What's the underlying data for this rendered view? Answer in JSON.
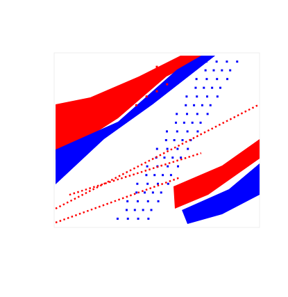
{
  "chart_data": {
    "type": "scatter",
    "xlim": [
      0,
      100
    ],
    "ylim": [
      0,
      100
    ],
    "tick_labels": false,
    "series": [
      {
        "type": "polygon",
        "color": "#ff0000",
        "x": [
          0.7,
          17.6,
          41.2,
          61.5,
          75,
          54.7,
          31.1,
          7.4,
          0.7
        ],
        "values": [
          70.5,
          74.5,
          86.5,
          98.4,
          98.4,
          86.5,
          62.5,
          44.6,
          38.6
        ]
      },
      {
        "type": "polygon",
        "color": "#0000ff",
        "x": [
          0.7,
          31.1,
          59.8,
          71.6,
          78.4,
          48,
          24.3,
          0.7
        ],
        "values": [
          44.6,
          60.6,
          90.4,
          98.4,
          98.4,
          70.5,
          50.6,
          24.7
        ]
      },
      {
        "type": "polygon",
        "color": "#ff0000",
        "x": [
          58.1,
          81.8,
          100,
          100,
          75,
          58.8
        ],
        "values": [
          23.5,
          35.5,
          50.6,
          39.4,
          18.7,
          10.8
        ]
      },
      {
        "type": "polygon",
        "color": "#0000ff",
        "x": [
          62.2,
          85.1,
          100,
          100,
          81.8,
          64.9
        ],
        "values": [
          10,
          21.9,
          36.7,
          18.7,
          7.6,
          2
        ]
      },
      {
        "type": "scatter",
        "marker": "square",
        "color": "#0000ff",
        "x": [
          30.9,
          35.9,
          40.9,
          45.9,
          35.3,
          39.3,
          43.3,
          47.3,
          35.7,
          40.7,
          45.7,
          50.7,
          40.1,
          44.1,
          48.1,
          52.1,
          40.5,
          45.5,
          50.5,
          55.5,
          44.9,
          48.9,
          52.9,
          56.9,
          45.3,
          50.3,
          55.3,
          60.3,
          49.7,
          53.7,
          57.7,
          61.7,
          50.1,
          55.1,
          60.1,
          65.1,
          54.5,
          58.5,
          62.5,
          66.5,
          54.9,
          59.9,
          64.9,
          69.9,
          59.3,
          63.3,
          67.3,
          71.3,
          59.7,
          64.7,
          69.7,
          74.7,
          64.1,
          68.1,
          72.1,
          76.1,
          64.5,
          69.5,
          74.5,
          79.5,
          68.9,
          72.9,
          76.9,
          80.9,
          69.3,
          74.3,
          79.3,
          84.3,
          73.7,
          77.7,
          81.7,
          85.7,
          74.1,
          79.1,
          84.1,
          89.1
        ],
        "values": [
          5,
          5,
          5,
          5,
          10,
          10,
          10,
          10,
          15,
          15,
          15,
          15,
          20,
          20,
          20,
          20,
          25,
          25,
          25,
          25,
          30,
          30,
          30,
          30,
          35,
          35,
          35,
          35,
          40,
          40,
          40,
          40,
          45,
          45,
          45,
          45,
          50,
          50,
          50,
          50,
          55,
          55,
          55,
          55,
          60,
          60,
          60,
          60,
          65,
          65,
          65,
          65,
          70,
          70,
          70,
          70,
          75,
          75,
          75,
          75,
          80,
          80,
          80,
          80,
          85,
          85,
          85,
          85,
          90,
          90,
          90,
          90,
          95,
          95,
          95,
          95
        ]
      },
      {
        "type": "line",
        "line_style": "dotted",
        "color": "#ff0000",
        "x": [
          0.7,
          100
        ],
        "values": [
          10.8,
          70.5
        ]
      },
      {
        "type": "line",
        "line_style": "dotted",
        "color": "#ff0000",
        "x": [
          0.7,
          61.5
        ],
        "values": [
          2.8,
          28.7
        ]
      },
      {
        "type": "line",
        "line_style": "dotted",
        "color": "#ff0000",
        "x": [
          7.4,
          71.6
        ],
        "values": [
          18.7,
          42.6
        ]
      },
      {
        "type": "scatter",
        "marker": "square",
        "color": "#ff0000",
        "x": [
          45,
          50,
          55,
          48,
          53,
          58,
          44,
          50,
          62,
          40,
          35
        ],
        "values": [
          75,
          78,
          82,
          85,
          88,
          91,
          80,
          92,
          94,
          70,
          72
        ]
      }
    ]
  }
}
